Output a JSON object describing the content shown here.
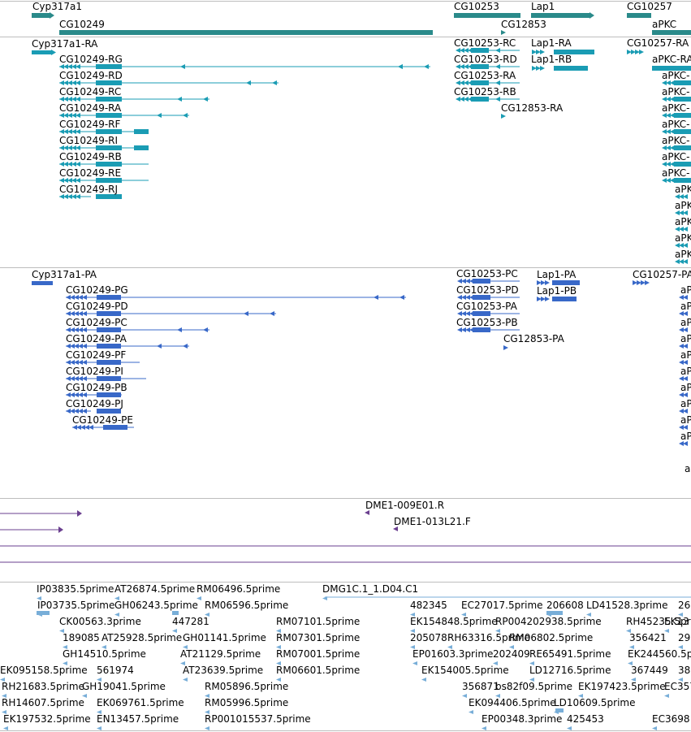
{
  "colors": {
    "gene": "#2a8a8a",
    "transcript": "#1a9cb4",
    "protein": "#3868c8",
    "clone": "#6a3f8f",
    "est": "#78aed8",
    "separator": "#bdbdbd"
  },
  "tracks": {
    "genes": {
      "labels": [
        "Cyp317a1",
        "CG10249",
        "CG10253",
        "CG12853",
        "Lap1",
        "CG10257",
        "aPKC"
      ]
    },
    "transcripts": {
      "labels": [
        "Cyp317a1-RA",
        "CG10249-RG",
        "CG10249-RD",
        "CG10249-RC",
        "CG10249-RA",
        "CG10249-RF",
        "CG10249-RI",
        "CG10249-RB",
        "CG10249-RE",
        "CG10249-RJ",
        "CG10253-RC",
        "CG10253-RD",
        "CG10253-RA",
        "CG10253-RB",
        "CG12853-RA",
        "Lap1-RA",
        "Lap1-RB",
        "CG10257-RA",
        "aPKC-RA",
        "aPKC-",
        "aPKC-",
        "aPKC-",
        "aPKC-",
        "aPKC-",
        "aPKC-",
        "aPKC-",
        "aPK",
        "aPK",
        "aPK",
        "aPK",
        "aPK"
      ]
    },
    "proteins": {
      "labels": [
        "Cyp317a1-PA",
        "CG10249-PG",
        "CG10249-PD",
        "CG10249-PC",
        "CG10249-PA",
        "CG10249-PF",
        "CG10249-PI",
        "CG10249-PB",
        "CG10249-PJ",
        "CG10249-PE",
        "CG10253-PC",
        "CG10253-PD",
        "CG10253-PA",
        "CG10253-PB",
        "CG12853-PA",
        "Lap1-PA",
        "Lap1-PB",
        "CG10257-PA",
        "aP",
        "aP",
        "aP",
        "aP",
        "aP",
        "aP",
        "aP",
        "aP",
        "aP",
        "aP",
        "a"
      ]
    },
    "clones": {
      "labels": [
        "DME1-009E01.R",
        "DME1-013L21.F"
      ]
    },
    "ests": {
      "labels": [
        "IP03835.5prime",
        "AT26874.5prime",
        "RM06496.5prime",
        "DMG1C.1_1.D04.C1",
        "IP03735.5prime",
        "GH06243.5prime",
        "RM06596.5prime",
        "482345",
        "EC27017.5prime",
        "206608",
        "LD41528.3prime",
        "26",
        "CK00563.3prime",
        "447281",
        "RM07101.5prime",
        "EK154848.5prime",
        "RP004202938.5prime",
        "RH45235.5prime",
        "EK13",
        "189085",
        "AT25928.5prime",
        "GH01141.5prime",
        "RM07301.5prime",
        "205078",
        "RH63316.5prime",
        "RM06802.5prime",
        "356421",
        "29",
        "GH14510.5prime",
        "AT21129.5prime",
        "RM07001.5prime",
        "EP01603.3prime",
        "202409",
        "RE65491.5prime",
        "EK244560.5p",
        "EK095158.5prime",
        "561974",
        "AT23639.5prime",
        "RM06601.5prime",
        "EK154005.5prime",
        "LD12716.5prime",
        "367449",
        "38",
        "RH21683.5prime",
        "GH19041.5prime",
        "RM05896.5prime",
        "356871",
        "bs82f09.5prime",
        "EK197423.5prime",
        "EC3578",
        "RH14607.5prime",
        "EK069761.5prime",
        "RM05996.5prime",
        "EK094406.5prime",
        "LD10609.5prime",
        "EK197532.5prime",
        "EN13457.5prime",
        "RP001015537.5prime",
        "EP00348.3prime",
        "425453",
        "EC3698"
      ]
    }
  }
}
